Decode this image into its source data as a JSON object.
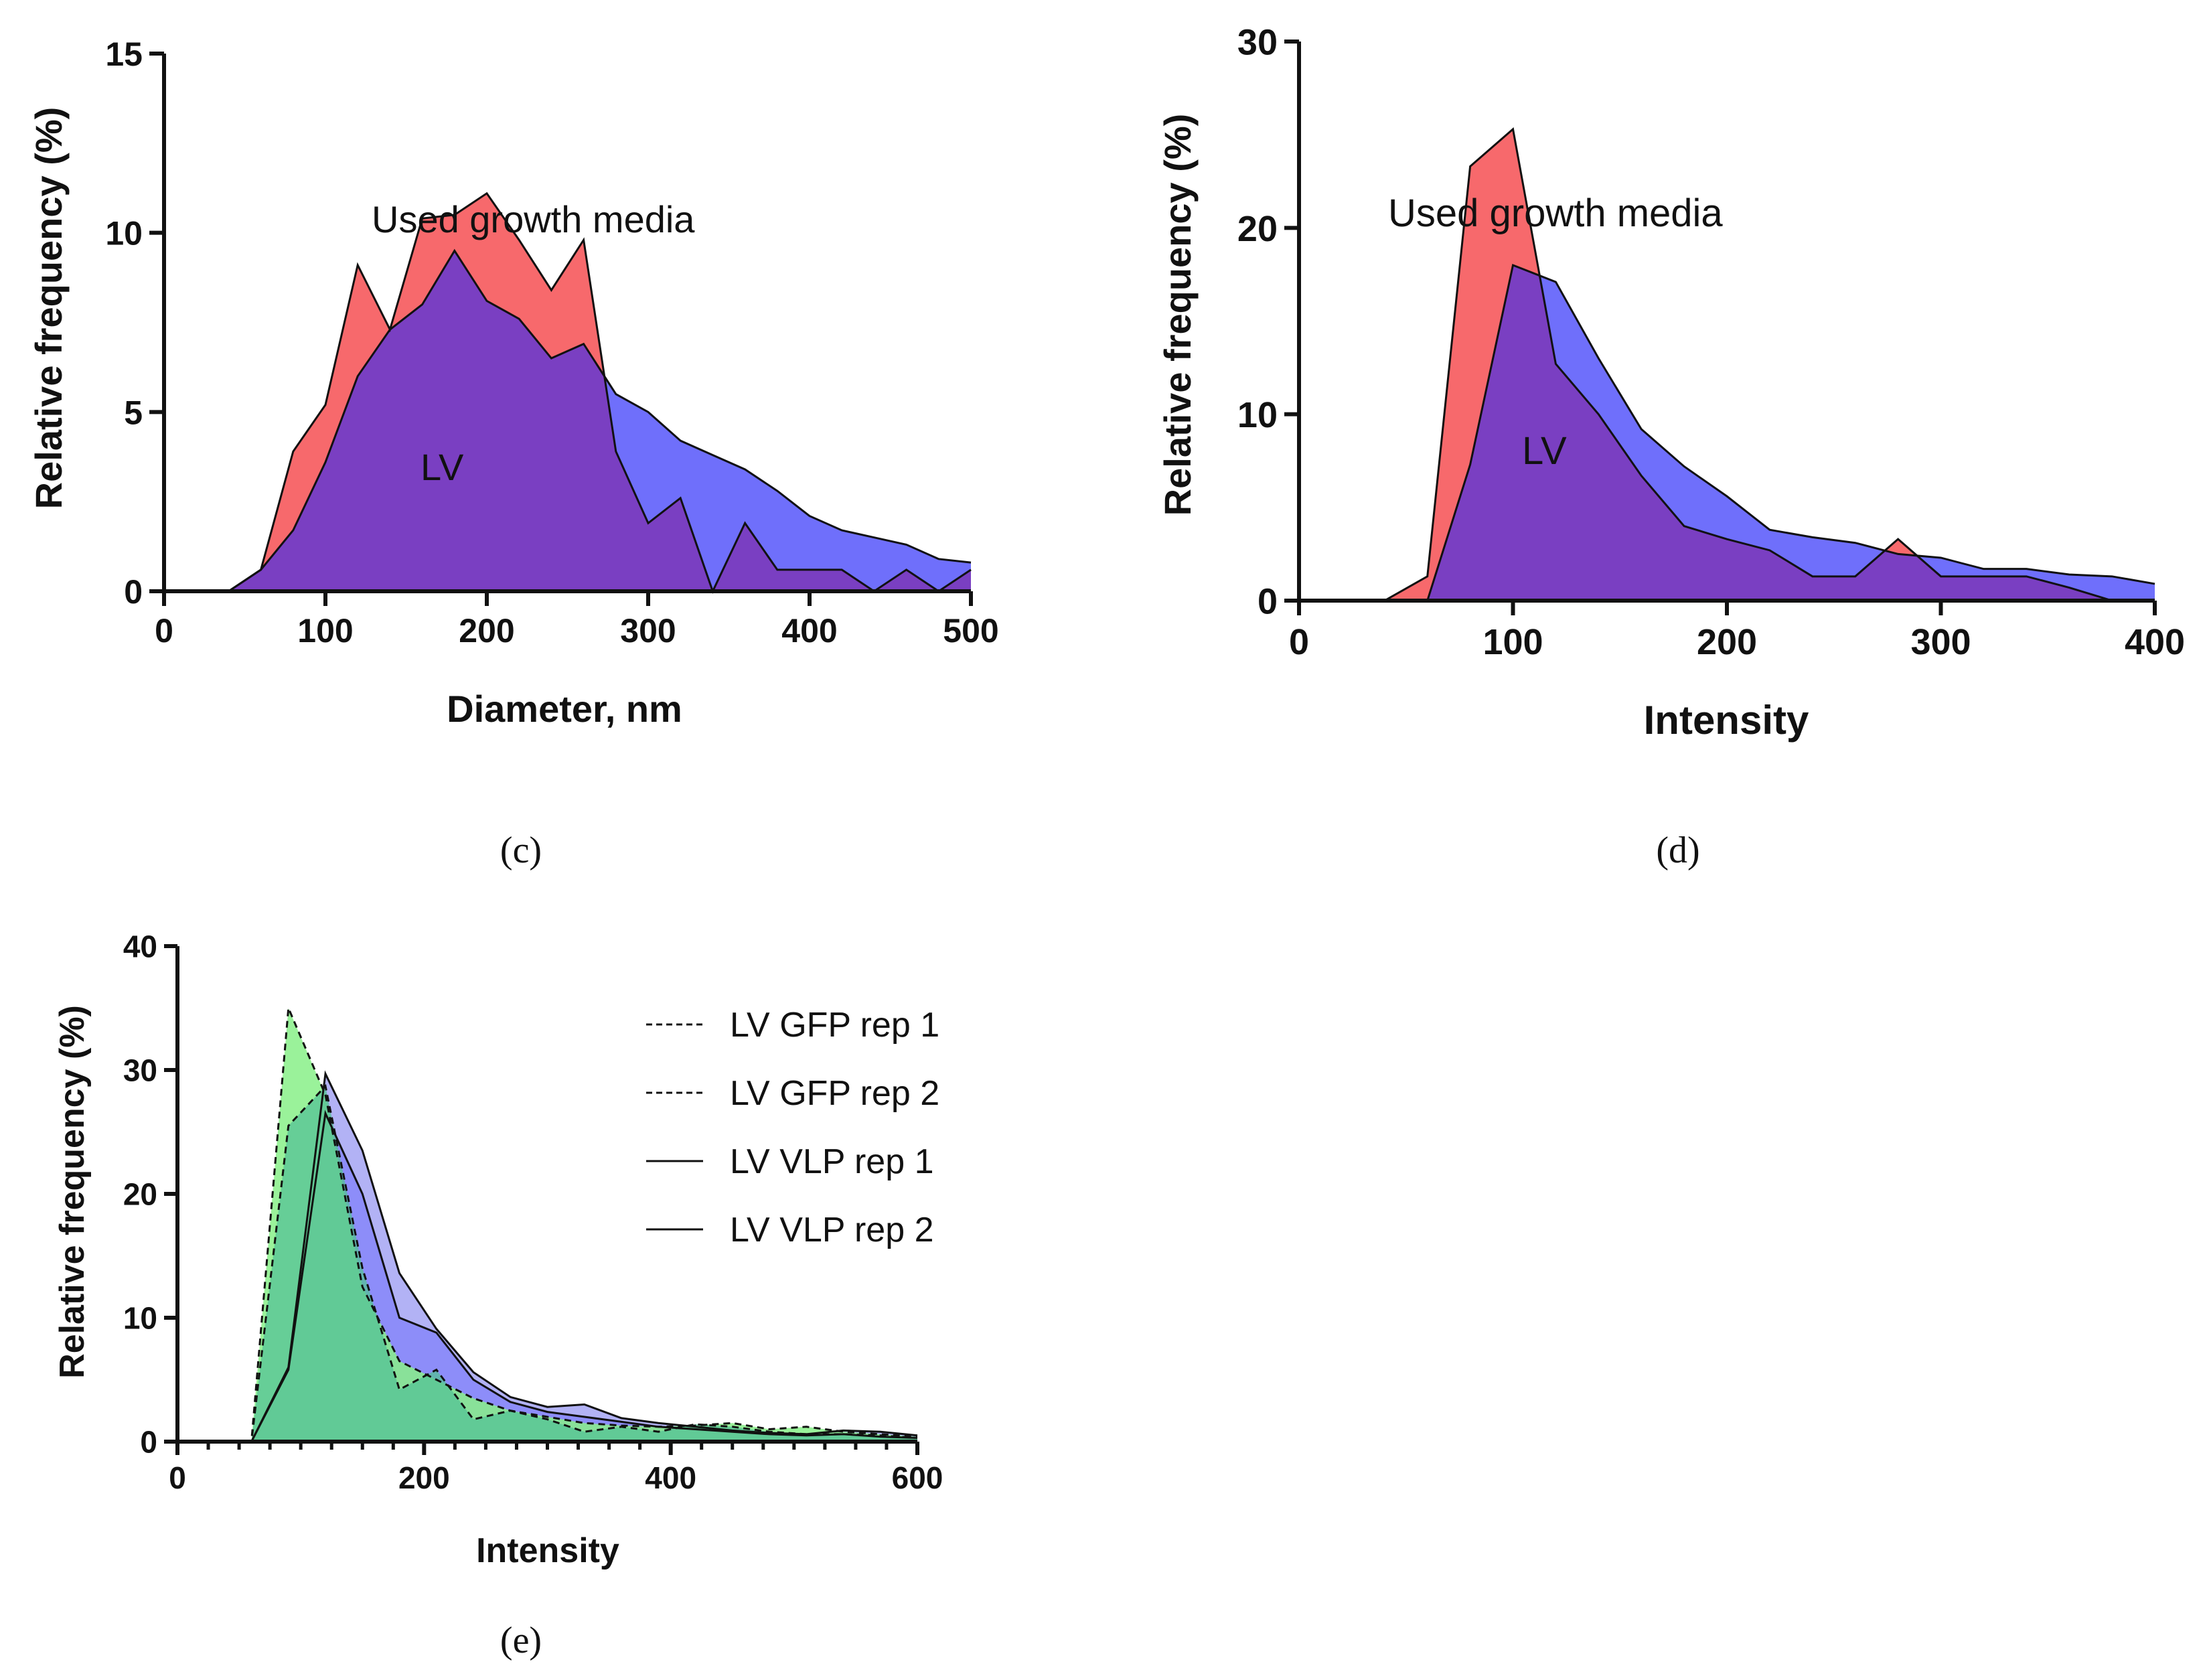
{
  "colors": {
    "red": "#f7696c",
    "blue": "#6f6ffb",
    "purple": "#7a3fc2",
    "light_blue": "#aaaaf4",
    "light_green": "#88f088",
    "teal_green": "#54c296"
  },
  "chart_data": [
    {
      "type": "area",
      "panel": "(c)",
      "xlabel": "Diameter, nm",
      "ylabel": "Relative frequency (%)",
      "xlim": [
        0,
        500
      ],
      "ylim": [
        0,
        15
      ],
      "xticks": [
        0,
        100,
        200,
        300,
        400,
        500
      ],
      "yticks": [
        0,
        5,
        10,
        15
      ],
      "annotations": [
        {
          "text": "Used growth media",
          "series": "Used growth media"
        },
        {
          "text": "LV",
          "series": "LV"
        }
      ],
      "series": [
        {
          "name": "Used growth media",
          "color": "#f7696c",
          "x": [
            0,
            40,
            60,
            80,
            100,
            120,
            140,
            160,
            180,
            200,
            220,
            240,
            260,
            280,
            300,
            320,
            340,
            360,
            380,
            400,
            420,
            440,
            460,
            480,
            500
          ],
          "y": [
            0,
            0,
            0.6,
            3.9,
            5.2,
            9.1,
            7.3,
            10.4,
            10.5,
            11.1,
            9.8,
            8.4,
            9.8,
            3.9,
            1.9,
            2.6,
            0,
            1.9,
            0.6,
            0.6,
            0.6,
            0,
            0.6,
            0,
            0.6
          ]
        },
        {
          "name": "LV",
          "color": "#6f6ffb",
          "x": [
            0,
            40,
            60,
            80,
            100,
            120,
            140,
            160,
            180,
            200,
            220,
            240,
            260,
            280,
            300,
            320,
            340,
            360,
            380,
            400,
            420,
            440,
            460,
            480,
            500
          ],
          "y": [
            0,
            0,
            0.6,
            1.7,
            3.6,
            6.0,
            7.3,
            8.0,
            9.5,
            8.1,
            7.6,
            6.5,
            6.9,
            5.5,
            5.0,
            4.2,
            3.8,
            3.4,
            2.8,
            2.1,
            1.7,
            1.5,
            1.3,
            0.9,
            0.8
          ]
        }
      ]
    },
    {
      "type": "area",
      "panel": "(d)",
      "xlabel": "Intensity",
      "ylabel": "Relative frequency (%)",
      "xlim": [
        0,
        400
      ],
      "ylim": [
        0,
        30
      ],
      "xticks": [
        0,
        100,
        200,
        300,
        400
      ],
      "yticks": [
        0,
        10,
        20,
        30
      ],
      "annotations": [
        {
          "text": "Used growth media",
          "series": "Used growth media"
        },
        {
          "text": "LV",
          "series": "LV"
        }
      ],
      "series": [
        {
          "name": "Used growth media",
          "color": "#f7696c",
          "x": [
            0,
            40,
            60,
            80,
            100,
            120,
            140,
            160,
            180,
            200,
            220,
            240,
            260,
            280,
            300,
            320,
            340,
            360,
            380,
            400
          ],
          "y": [
            0,
            0,
            1.3,
            23.3,
            25.3,
            12.7,
            10.0,
            6.7,
            4.0,
            3.3,
            2.7,
            1.3,
            1.3,
            3.3,
            1.3,
            1.3,
            1.3,
            0.7,
            0,
            0
          ]
        },
        {
          "name": "LV",
          "color": "#6f6ffb",
          "x": [
            0,
            40,
            60,
            80,
            100,
            120,
            140,
            160,
            180,
            200,
            220,
            240,
            260,
            280,
            300,
            320,
            340,
            360,
            380,
            400
          ],
          "y": [
            0,
            0,
            0,
            7.3,
            18.0,
            17.1,
            13.0,
            9.2,
            7.2,
            5.6,
            3.8,
            3.4,
            3.1,
            2.5,
            2.3,
            1.7,
            1.7,
            1.4,
            1.3,
            0.9
          ]
        }
      ]
    },
    {
      "type": "area",
      "panel": "(e)",
      "xlabel": "Intensity",
      "ylabel": "Relative frequency (%)",
      "xlim": [
        0,
        600
      ],
      "ylim": [
        0,
        40
      ],
      "xticks": [
        0,
        200,
        400,
        600
      ],
      "yticks": [
        0,
        10,
        20,
        30,
        40
      ],
      "legend_position": "top-right",
      "series": [
        {
          "name": "LV GFP rep 1",
          "style": "dashed",
          "color": "#88f088",
          "x": [
            0,
            30,
            60,
            90,
            120,
            150,
            180,
            210,
            240,
            270,
            300,
            330,
            360,
            390,
            420,
            450,
            480,
            510,
            540,
            570,
            600
          ],
          "y": [
            0,
            0,
            0,
            35.0,
            28.0,
            12.5,
            6.5,
            5.0,
            3.5,
            2.5,
            2.0,
            1.5,
            1.3,
            1.2,
            1.3,
            1.5,
            1.0,
            1.2,
            0.8,
            0.6,
            0.4
          ]
        },
        {
          "name": "LV GFP rep 2",
          "style": "dashed",
          "color": "#88f088",
          "x": [
            0,
            30,
            60,
            90,
            120,
            150,
            180,
            210,
            240,
            270,
            300,
            330,
            360,
            390,
            420,
            450,
            480,
            510,
            540,
            570,
            600
          ],
          "y": [
            0,
            0,
            0,
            25.5,
            28.7,
            14.0,
            4.2,
            5.8,
            1.8,
            2.5,
            1.8,
            0.8,
            1.2,
            0.8,
            1.4,
            1.2,
            0.8,
            0.6,
            0.6,
            0.5,
            0.3
          ]
        },
        {
          "name": "LV VLP rep 1",
          "style": "solid",
          "color": "#aaaaf4",
          "x": [
            0,
            30,
            60,
            90,
            120,
            150,
            180,
            210,
            240,
            270,
            300,
            330,
            360,
            390,
            420,
            450,
            480,
            510,
            540,
            570,
            600
          ],
          "y": [
            0,
            0,
            0,
            6.0,
            29.7,
            23.5,
            13.6,
            9.1,
            5.6,
            3.6,
            2.8,
            3.0,
            1.9,
            1.5,
            1.2,
            0.9,
            0.7,
            0.6,
            0.9,
            0.8,
            0.5
          ]
        },
        {
          "name": "LV VLP rep 2",
          "style": "solid",
          "color": "#aaaaf4",
          "x": [
            0,
            30,
            60,
            90,
            120,
            150,
            180,
            210,
            240,
            270,
            300,
            330,
            360,
            390,
            420,
            450,
            480,
            510,
            540,
            570,
            600
          ],
          "y": [
            0,
            0,
            0,
            5.8,
            26.5,
            20.0,
            10.0,
            8.8,
            5.0,
            3.2,
            2.4,
            2.0,
            1.6,
            1.2,
            1.0,
            0.8,
            0.6,
            0.5,
            0.6,
            0.4,
            0.3
          ]
        }
      ]
    }
  ]
}
